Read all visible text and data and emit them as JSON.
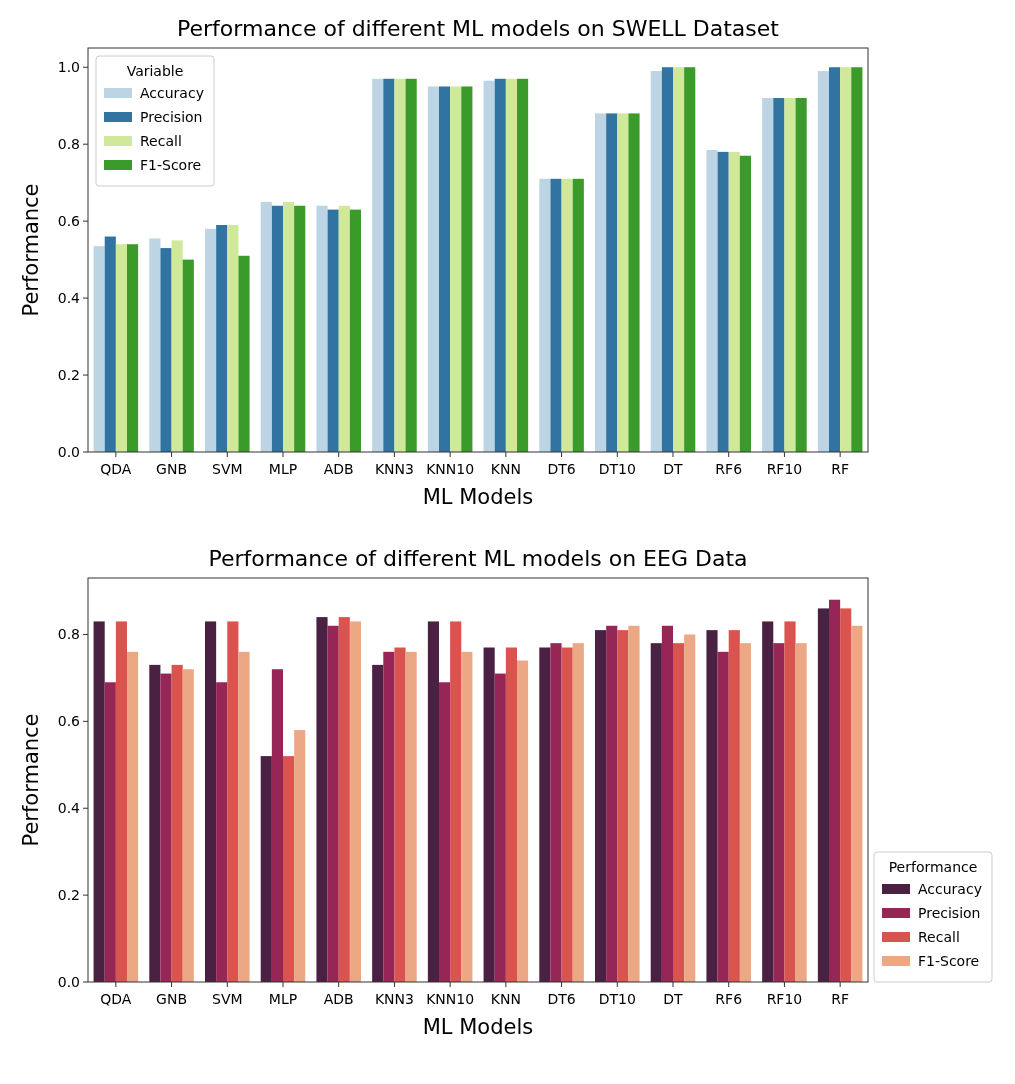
{
  "chart_data": [
    {
      "type": "bar",
      "title": "Performance of different ML models on SWELL Dataset",
      "xlabel": "ML Models",
      "ylabel": "Performance",
      "legend_title": "Variable",
      "legend": "top left",
      "categories": [
        "QDA",
        "GNB",
        "SVM",
        "MLP",
        "ADB",
        "KNN3",
        "KNN10",
        "KNN",
        "DT6",
        "DT10",
        "DT",
        "RF6",
        "RF10",
        "RF"
      ],
      "ylim": [
        0,
        1.05
      ],
      "yticks": [
        {
          "value": 0,
          "label": "0.0"
        },
        {
          "value": 0.2,
          "label": "0.2"
        },
        {
          "value": 0.4,
          "label": "0.4"
        },
        {
          "value": 0.6,
          "label": "0.6"
        },
        {
          "value": 0.8,
          "label": "0.8"
        },
        {
          "value": 1,
          "label": "1.0"
        }
      ],
      "series": [
        {
          "name": "Accuracy",
          "color": "#bcd4e3",
          "values": [
            0.535,
            0.555,
            0.58,
            0.65,
            0.64,
            0.97,
            0.95,
            0.965,
            0.71,
            0.88,
            0.99,
            0.785,
            0.92,
            0.99
          ]
        },
        {
          "name": "Precision",
          "color": "#3274a1",
          "values": [
            0.56,
            0.53,
            0.59,
            0.64,
            0.63,
            0.97,
            0.95,
            0.97,
            0.71,
            0.88,
            1.0,
            0.78,
            0.92,
            1.0
          ]
        },
        {
          "name": "Recall",
          "color": "#cfe89a",
          "values": [
            0.54,
            0.55,
            0.59,
            0.65,
            0.64,
            0.97,
            0.95,
            0.97,
            0.71,
            0.88,
            1.0,
            0.78,
            0.92,
            1.0
          ]
        },
        {
          "name": "F1-Score",
          "color": "#3a9a2a",
          "values": [
            0.54,
            0.5,
            0.51,
            0.64,
            0.63,
            0.97,
            0.95,
            0.97,
            0.71,
            0.88,
            1.0,
            0.77,
            0.92,
            1.0
          ]
        }
      ]
    },
    {
      "type": "bar",
      "title": "Performance of different ML models on EEG Data",
      "xlabel": "ML Models",
      "ylabel": "Performance",
      "legend_title": "Performance",
      "legend": "bottom right",
      "categories": [
        "QDA",
        "GNB",
        "SVM",
        "MLP",
        "ADB",
        "KNN3",
        "KNN10",
        "KNN",
        "DT6",
        "DT10",
        "DT",
        "RF6",
        "RF10",
        "RF"
      ],
      "ylim": [
        0,
        0.93
      ],
      "yticks": [
        {
          "value": 0,
          "label": "0.0"
        },
        {
          "value": 0.2,
          "label": "0.2"
        },
        {
          "value": 0.4,
          "label": "0.4"
        },
        {
          "value": 0.6,
          "label": "0.6"
        },
        {
          "value": 0.8,
          "label": "0.8"
        }
      ],
      "series": [
        {
          "name": "Accuracy",
          "color": "#4a2143",
          "values": [
            0.83,
            0.73,
            0.83,
            0.52,
            0.84,
            0.73,
            0.83,
            0.77,
            0.77,
            0.81,
            0.78,
            0.81,
            0.83,
            0.86
          ]
        },
        {
          "name": "Precision",
          "color": "#952656",
          "values": [
            0.69,
            0.71,
            0.69,
            0.72,
            0.82,
            0.76,
            0.69,
            0.71,
            0.78,
            0.82,
            0.82,
            0.76,
            0.78,
            0.88
          ]
        },
        {
          "name": "Recall",
          "color": "#d9534f",
          "values": [
            0.83,
            0.73,
            0.83,
            0.52,
            0.84,
            0.77,
            0.83,
            0.77,
            0.77,
            0.81,
            0.78,
            0.81,
            0.83,
            0.86
          ]
        },
        {
          "name": "F1-Score",
          "color": "#eca885",
          "values": [
            0.76,
            0.72,
            0.76,
            0.58,
            0.83,
            0.76,
            0.76,
            0.74,
            0.78,
            0.82,
            0.8,
            0.78,
            0.78,
            0.82
          ]
        }
      ]
    }
  ]
}
